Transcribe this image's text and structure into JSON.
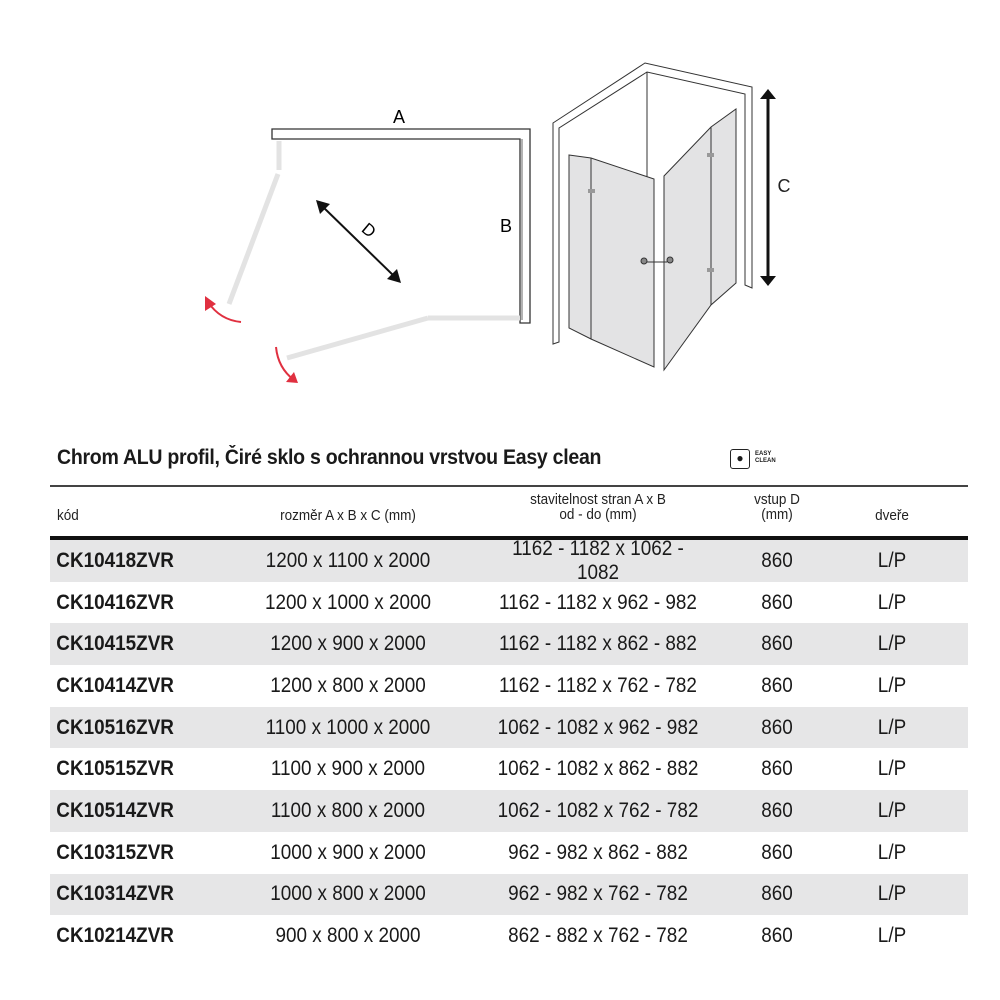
{
  "diagram": {
    "label_a": "A",
    "label_b": "B",
    "label_c": "C",
    "label_d": "D",
    "accent_color": "#e03040"
  },
  "title": "Chrom ALU profil, Čiré sklo s ochrannou vrstvou Easy clean",
  "easy_clean_badge": {
    "icon": "water-drop-icon",
    "text_line1": "EASY",
    "text_line2": "CLEAN"
  },
  "table": {
    "headers": [
      {
        "line1": "kód",
        "line2": ""
      },
      {
        "line1": "rozměr A x B x C (mm)",
        "line2": ""
      },
      {
        "line1": "stavitelnost stran A x B",
        "line2": "od - do (mm)"
      },
      {
        "line1": "vstup D",
        "line2": "(mm)"
      },
      {
        "line1": "dveře",
        "line2": ""
      }
    ],
    "rows": [
      [
        "CK10418ZVR",
        "1200 x 1100 x 2000",
        "1162 - 1182 x 1062 - 1082",
        "860",
        "L/P"
      ],
      [
        "CK10416ZVR",
        "1200 x 1000 x 2000",
        "1162 - 1182 x 962 - 982",
        "860",
        "L/P"
      ],
      [
        "CK10415ZVR",
        "1200 x 900 x 2000",
        "1162 - 1182 x 862 - 882",
        "860",
        "L/P"
      ],
      [
        "CK10414ZVR",
        "1200 x 800 x 2000",
        "1162 - 1182 x 762 - 782",
        "860",
        "L/P"
      ],
      [
        "CK10516ZVR",
        "1100 x 1000 x 2000",
        "1062 - 1082 x 962 - 982",
        "860",
        "L/P"
      ],
      [
        "CK10515ZVR",
        "1100 x 900 x 2000",
        "1062 - 1082 x 862 - 882",
        "860",
        "L/P"
      ],
      [
        "CK10514ZVR",
        "1100 x 800 x 2000",
        "1062 - 1082 x 762 - 782",
        "860",
        "L/P"
      ],
      [
        "CK10315ZVR",
        "1000 x 900 x 2000",
        "962 - 982 x 862 - 882",
        "860",
        "L/P"
      ],
      [
        "CK10314ZVR",
        "1000 x 800 x 2000",
        "962 - 982 x 762 - 782",
        "860",
        "L/P"
      ],
      [
        "CK10214ZVR",
        "900 x 800 x 2000",
        "862 - 882 x 762 - 782",
        "860",
        "L/P"
      ]
    ]
  }
}
